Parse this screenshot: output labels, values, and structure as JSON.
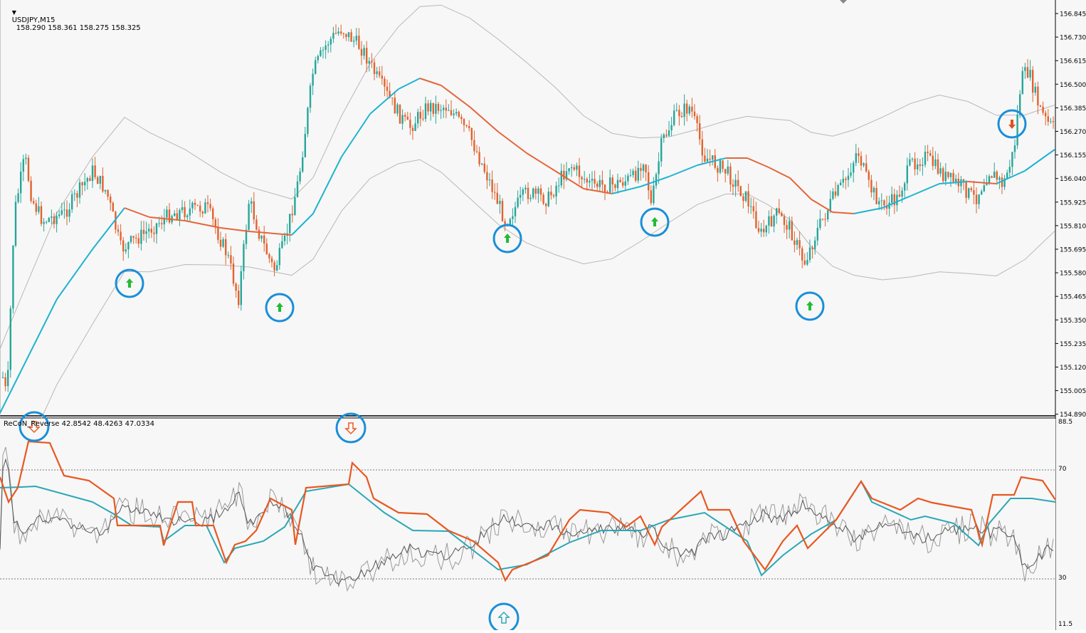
{
  "main_chart": {
    "symbol": "USDJPY,M15",
    "ohlc": "158.290 158.361 158.275 158.325",
    "price_ticks": [
      "156.845",
      "156.730",
      "156.615",
      "156.500",
      "156.385",
      "156.270",
      "156.155",
      "156.040",
      "155.925",
      "155.810",
      "155.695",
      "155.580",
      "155.465",
      "155.350",
      "155.235",
      "155.120",
      "155.005",
      "154.890"
    ],
    "signal_arrows": [
      {
        "dir": "up",
        "color": "#22bb33",
        "circle": "#1a8fd8"
      },
      {
        "dir": "up",
        "color": "#22bb33",
        "circle": "#1a8fd8"
      },
      {
        "dir": "up",
        "color": "#22bb33",
        "circle": "#1a8fd8"
      },
      {
        "dir": "up",
        "color": "#22bb33",
        "circle": "#1a8fd8"
      },
      {
        "dir": "up",
        "color": "#22bb33",
        "circle": "#1a8fd8"
      },
      {
        "dir": "down",
        "color": "#e05020",
        "circle": "#1a8fd8"
      }
    ],
    "colors": {
      "bull": "#26a69a",
      "bear": "#e2622e",
      "ma_rising": "#1fb3d0",
      "ma_falling": "#e5653a",
      "bands": "#b8b8b8"
    }
  },
  "sub_chart": {
    "indicator_label": "ReCoN_Reverse 42.8542 48.4263 47.0334",
    "level_ticks": [
      "88.5",
      "70",
      "30",
      "11.5"
    ],
    "colors": {
      "orange": "#e85820",
      "teal": "#2aa7b6",
      "gray": "#9a9a9a",
      "dark": "#555555"
    }
  },
  "icons": [
    "dropdown-triangle-icon",
    "up-arrow-icon",
    "down-arrow-icon",
    "hollow-up-arrow-icon",
    "hollow-down-arrow-icon",
    "chart-shift-marker-icon"
  ]
}
